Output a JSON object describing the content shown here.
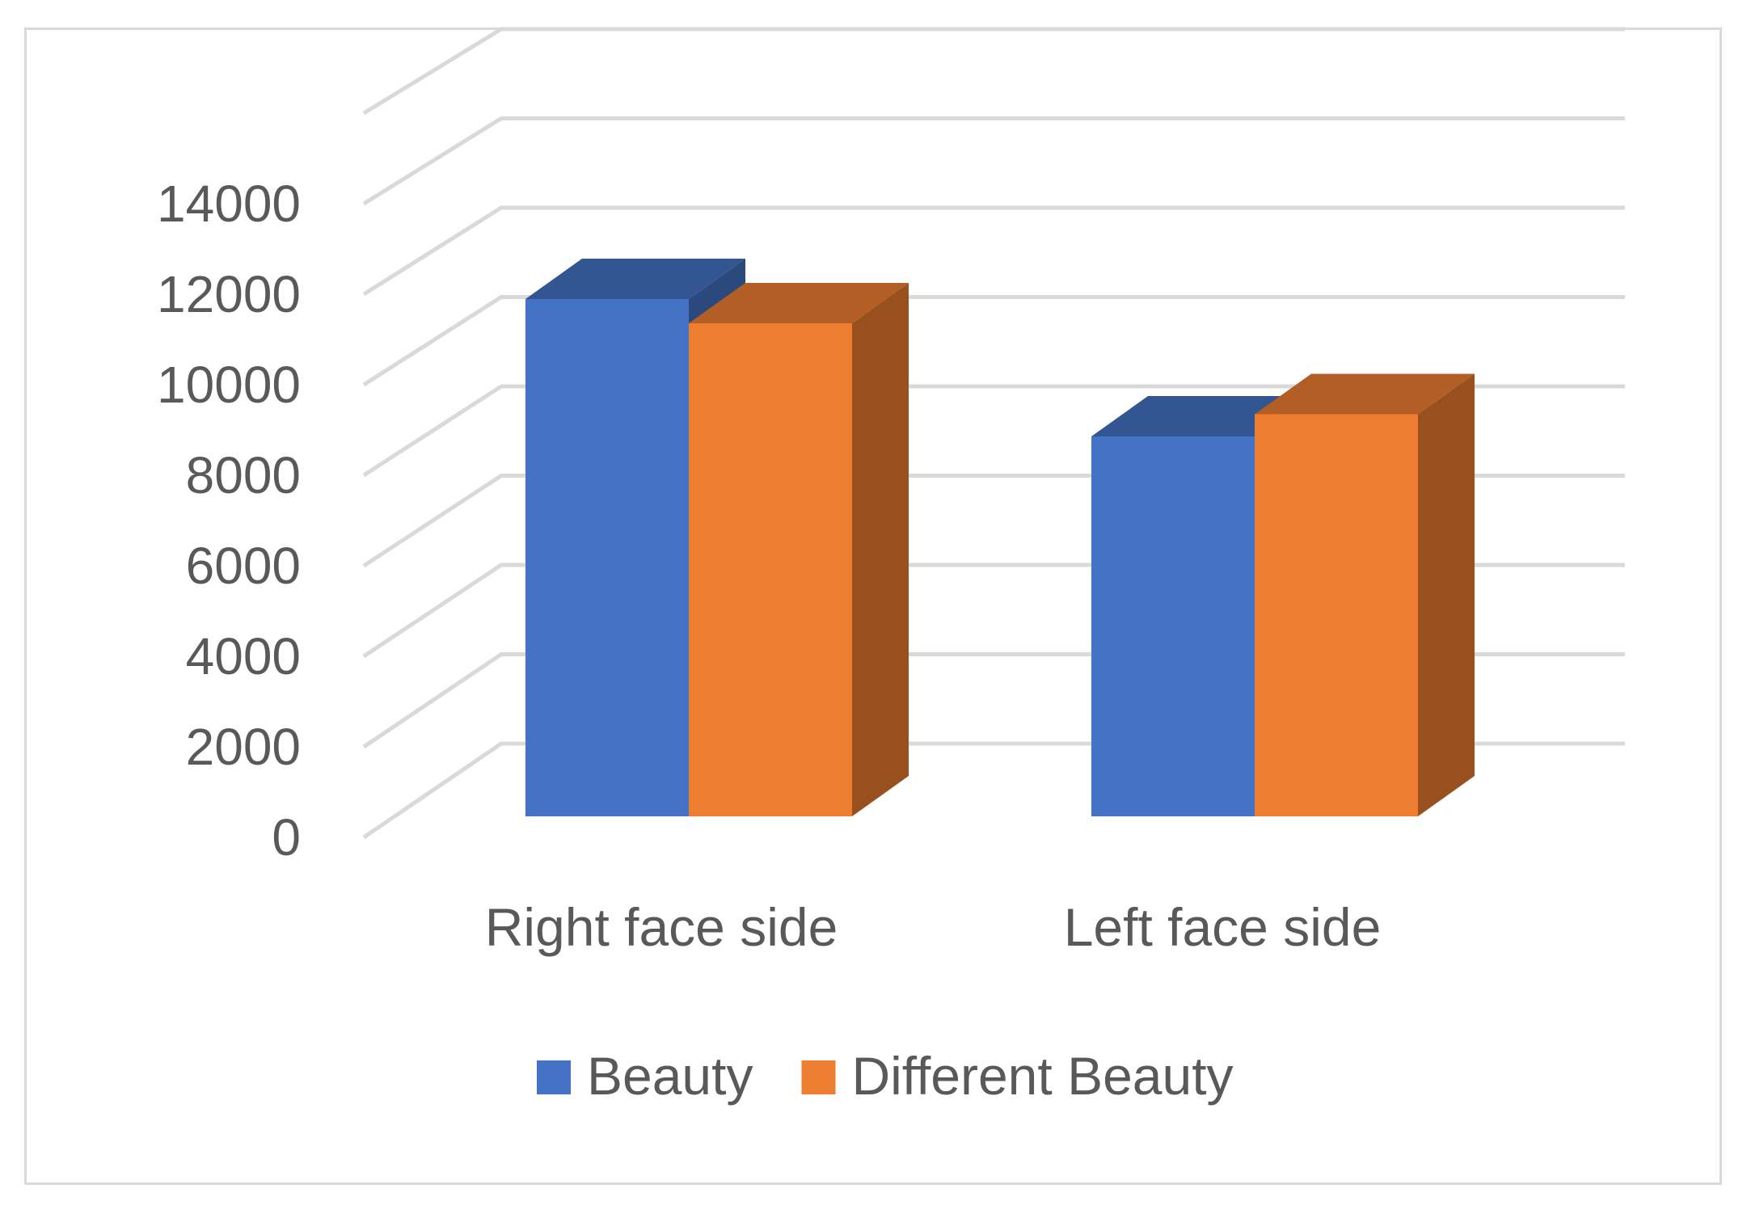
{
  "chart_data": {
    "type": "bar",
    "categories": [
      "Right face side",
      "Left face side"
    ],
    "series": [
      {
        "name": "Beauty",
        "values": [
          12800,
          9400
        ],
        "color": "#4472c4"
      },
      {
        "name": "Different Beauty",
        "values": [
          12200,
          9950
        ],
        "color": "#ed7d31"
      }
    ],
    "y_ticks": [
      "0",
      "2000",
      "4000",
      "6000",
      "8000",
      "10000",
      "12000",
      "14000"
    ],
    "ylim": [
      0,
      16000
    ],
    "grid": true,
    "legend_position": "bottom",
    "three_d": true
  }
}
